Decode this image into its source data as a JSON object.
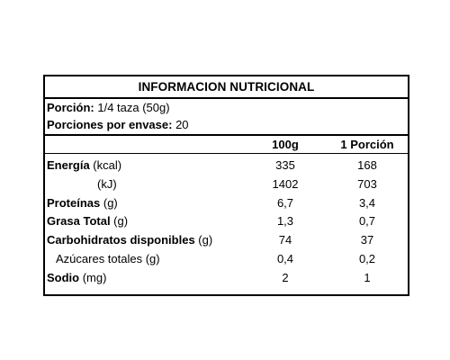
{
  "title": "INFORMACION NUTRICIONAL",
  "serving": {
    "portion_label": "Porción:",
    "portion_value": " 1/4 taza (50g)",
    "servings_label": "Porciones por envase:",
    "servings_value": " 20"
  },
  "columns": {
    "per_100": "100g",
    "per_portion": "1 Porción"
  },
  "rows": [
    {
      "name": "Energía",
      "unit": " (kcal)",
      "per_100": "335",
      "per_portion": "168"
    },
    {
      "name": "",
      "unit": "(kJ)",
      "per_100": "1402",
      "per_portion": "703"
    },
    {
      "name": "Proteínas",
      "unit": " (g)",
      "per_100": "6,7",
      "per_portion": "3,4"
    },
    {
      "name": "Grasa Total",
      "unit": " (g)",
      "per_100": "1,3",
      "per_portion": "0,7"
    },
    {
      "name": "Carbohidratos disponibles",
      "unit": " (g)",
      "per_100": "74",
      "per_portion": "37"
    },
    {
      "name": "",
      "unit": "Azúcares totales (g)",
      "per_100": "0,4",
      "per_portion": "0,2"
    },
    {
      "name": "Sodio",
      "unit": " (mg)",
      "per_100": "2",
      "per_portion": "1"
    }
  ]
}
